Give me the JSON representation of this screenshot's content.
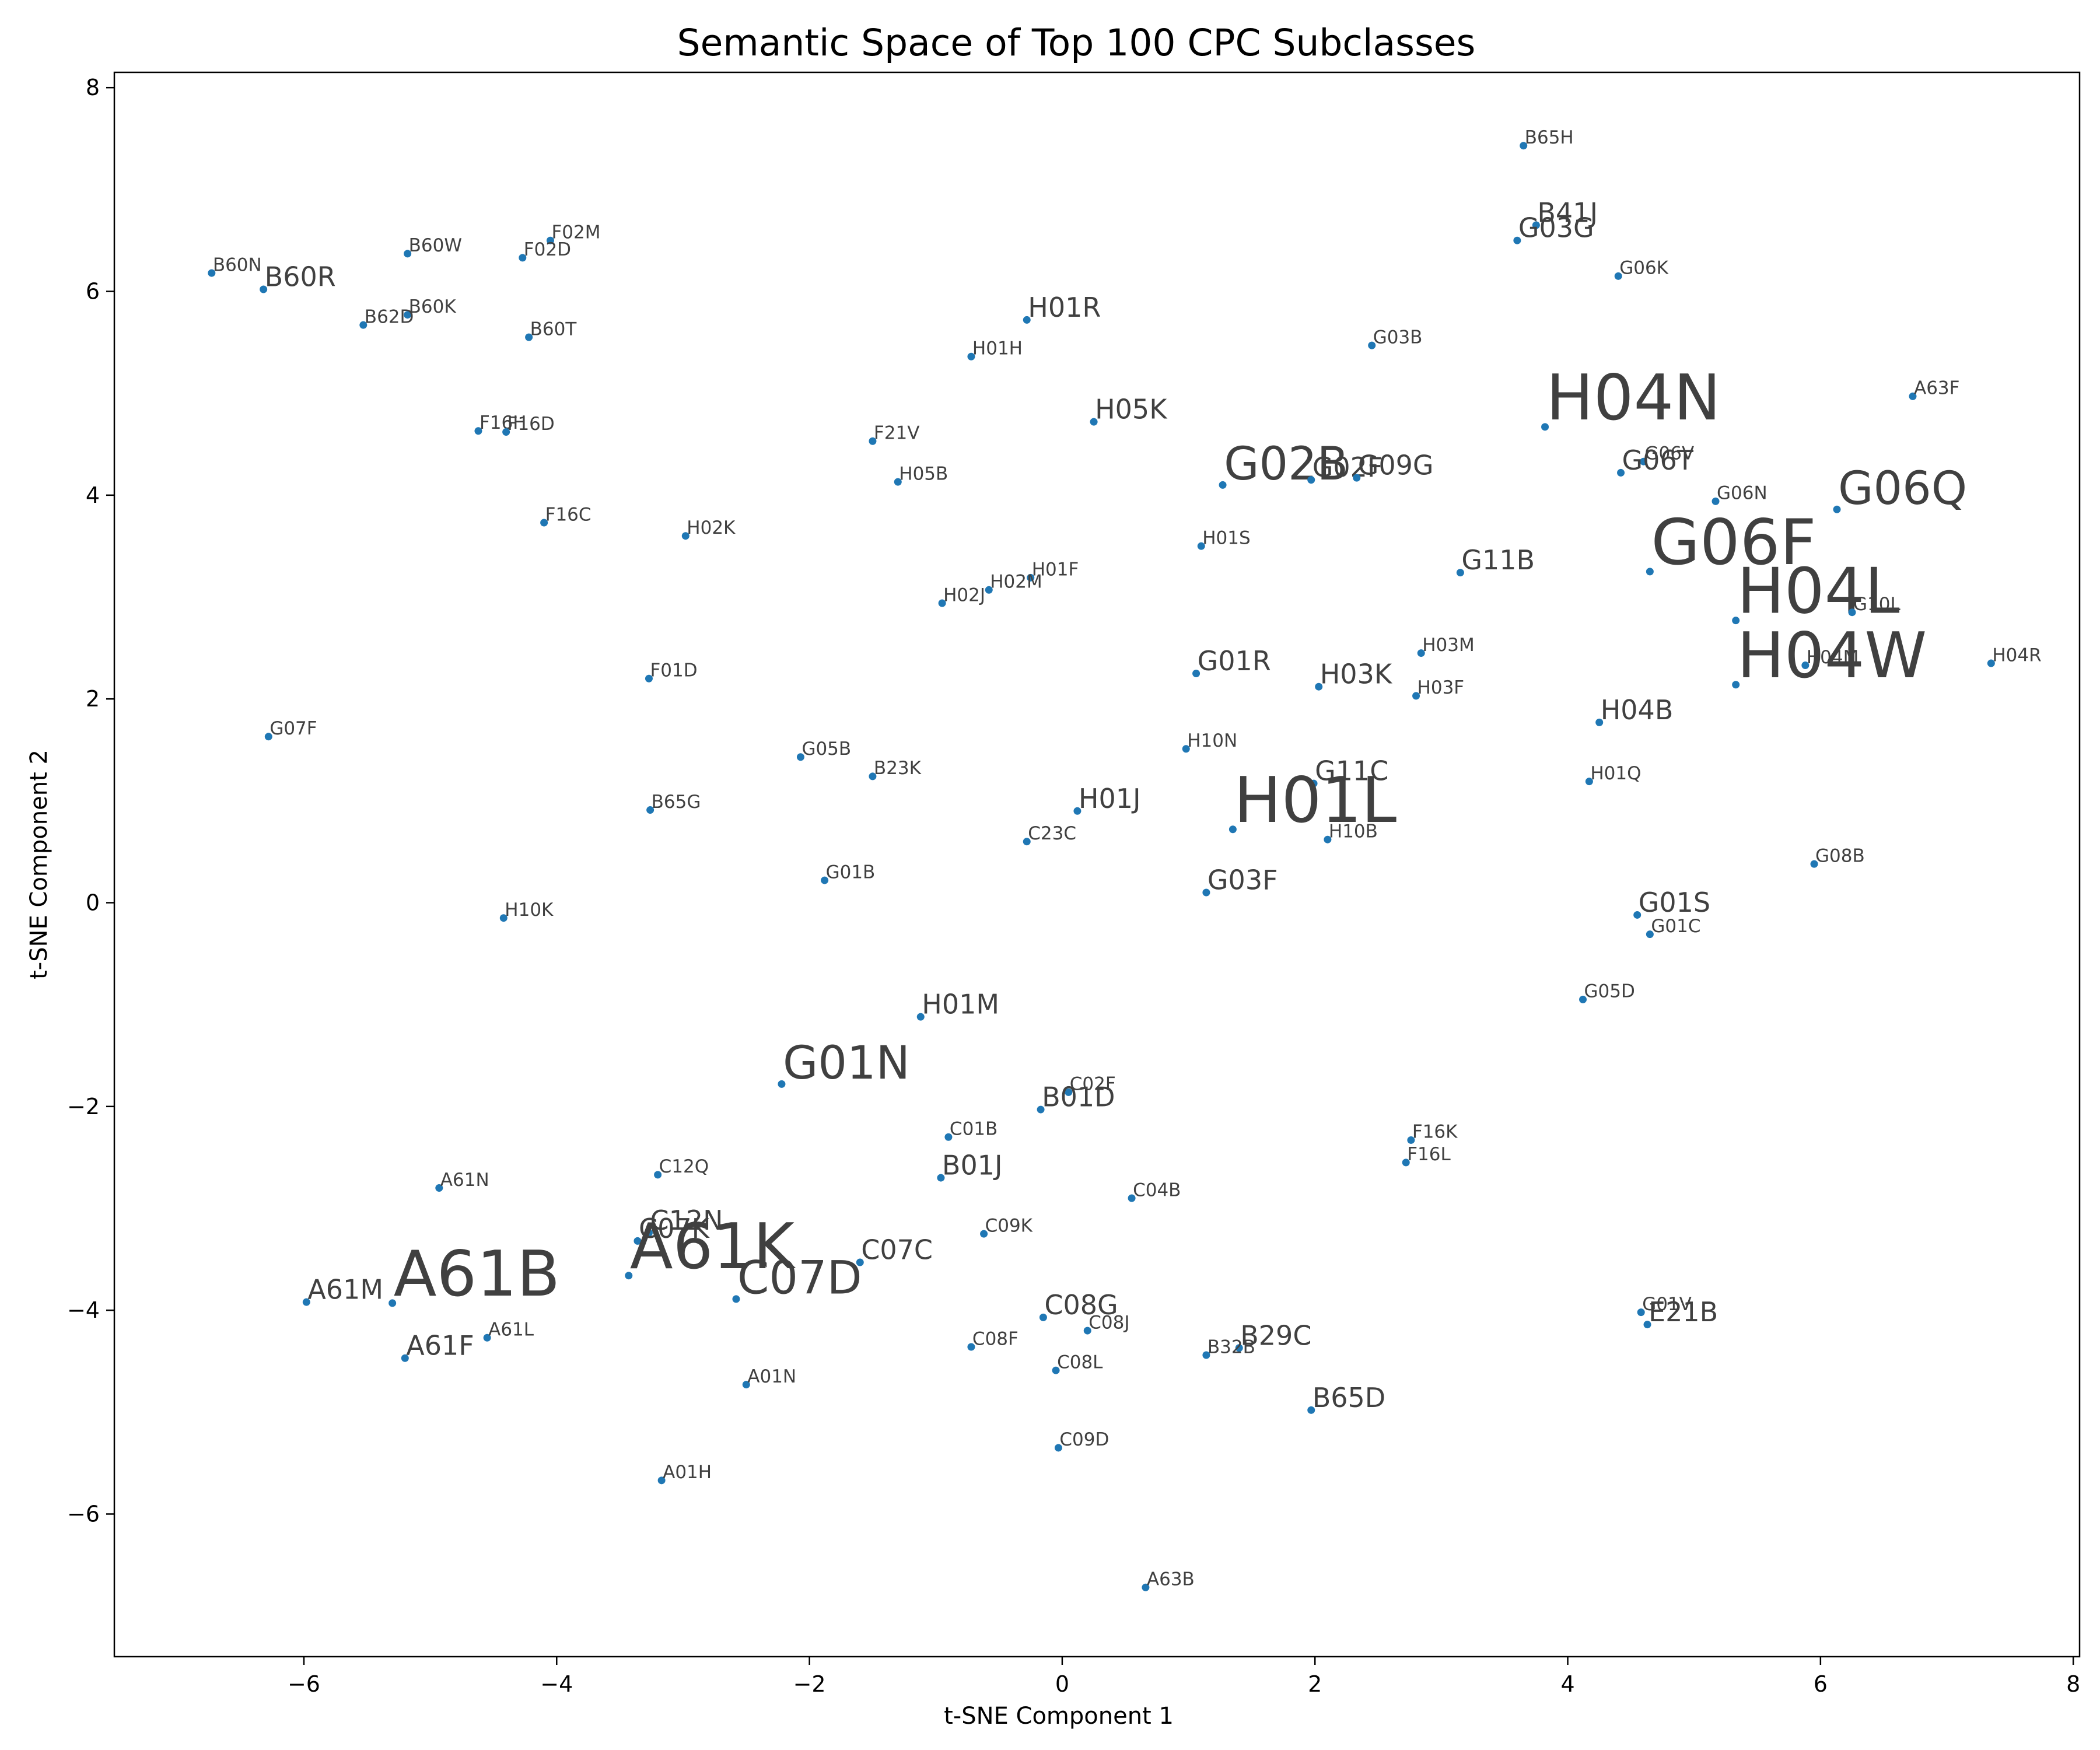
{
  "chart_data": {
    "type": "scatter",
    "title": "Semantic Space of Top 100 CPC Subclasses",
    "xlabel": "t-SNE Component 1",
    "ylabel": "t-SNE Component 2",
    "xlim": [
      -7.5,
      8.05
    ],
    "ylim": [
      -7.4,
      8.15
    ],
    "xticks": [
      -6,
      -4,
      -2,
      0,
      2,
      4,
      6,
      8
    ],
    "yticks": [
      -6,
      -4,
      -2,
      0,
      2,
      4,
      6,
      8
    ],
    "xtick_labels": [
      "−6",
      "−4",
      "−2",
      "0",
      "2",
      "4",
      "6",
      "8"
    ],
    "ytick_labels": [
      "−6",
      "−4",
      "−2",
      "0",
      "2",
      "4",
      "6",
      "8"
    ],
    "grid": false,
    "marker_color": "#1f77b4",
    "label_color": "#404040",
    "label_size_scale": "label font size reflects subclass prominence (s=small, m=medium, l=large, xl=extra large)",
    "points": [
      {
        "label": "B65H",
        "x": 3.65,
        "y": 7.43,
        "size": "s"
      },
      {
        "label": "B41J",
        "x": 3.75,
        "y": 6.65,
        "size": "m"
      },
      {
        "label": "G03G",
        "x": 3.6,
        "y": 6.5,
        "size": "m"
      },
      {
        "label": "G06K",
        "x": 4.4,
        "y": 6.15,
        "size": "s"
      },
      {
        "label": "B60N",
        "x": -6.73,
        "y": 6.18,
        "size": "s"
      },
      {
        "label": "B60R",
        "x": -6.32,
        "y": 6.02,
        "size": "m"
      },
      {
        "label": "B60W",
        "x": -5.18,
        "y": 6.37,
        "size": "s"
      },
      {
        "label": "F02M",
        "x": -4.05,
        "y": 6.5,
        "size": "s"
      },
      {
        "label": "F02D",
        "x": -4.27,
        "y": 6.33,
        "size": "s"
      },
      {
        "label": "B60K",
        "x": -5.18,
        "y": 5.77,
        "size": "s"
      },
      {
        "label": "B62D",
        "x": -5.53,
        "y": 5.67,
        "size": "s"
      },
      {
        "label": "B60T",
        "x": -4.22,
        "y": 5.55,
        "size": "s"
      },
      {
        "label": "H01R",
        "x": -0.28,
        "y": 5.72,
        "size": "m"
      },
      {
        "label": "H01H",
        "x": -0.72,
        "y": 5.36,
        "size": "s"
      },
      {
        "label": "G03B",
        "x": 2.45,
        "y": 5.47,
        "size": "s"
      },
      {
        "label": "A63F",
        "x": 6.73,
        "y": 4.97,
        "size": "s"
      },
      {
        "label": "H04N",
        "x": 3.82,
        "y": 4.67,
        "size": "xl"
      },
      {
        "label": "F16H",
        "x": -4.62,
        "y": 4.63,
        "size": "s"
      },
      {
        "label": "F16D",
        "x": -4.4,
        "y": 4.62,
        "size": "s"
      },
      {
        "label": "F21V",
        "x": -1.5,
        "y": 4.53,
        "size": "s"
      },
      {
        "label": "H05K",
        "x": 0.25,
        "y": 4.72,
        "size": "m"
      },
      {
        "label": "G02B",
        "x": 1.27,
        "y": 4.1,
        "size": "l"
      },
      {
        "label": "G02F",
        "x": 1.97,
        "y": 4.15,
        "size": "m"
      },
      {
        "label": "G09G",
        "x": 2.33,
        "y": 4.17,
        "size": "m"
      },
      {
        "label": "G06V",
        "x": 4.6,
        "y": 4.33,
        "size": "s"
      },
      {
        "label": "G06T",
        "x": 4.42,
        "y": 4.22,
        "size": "m"
      },
      {
        "label": "H05B",
        "x": -1.3,
        "y": 4.13,
        "size": "s"
      },
      {
        "label": "G06N",
        "x": 5.17,
        "y": 3.94,
        "size": "s"
      },
      {
        "label": "G06Q",
        "x": 6.13,
        "y": 3.86,
        "size": "l"
      },
      {
        "label": "F16C",
        "x": -4.1,
        "y": 3.73,
        "size": "s"
      },
      {
        "label": "H02K",
        "x": -2.98,
        "y": 3.6,
        "size": "s"
      },
      {
        "label": "H01S",
        "x": 1.1,
        "y": 3.5,
        "size": "s"
      },
      {
        "label": "G06F",
        "x": 4.65,
        "y": 3.25,
        "size": "xl"
      },
      {
        "label": "G11B",
        "x": 3.15,
        "y": 3.24,
        "size": "m"
      },
      {
        "label": "H01F",
        "x": -0.25,
        "y": 3.19,
        "size": "s"
      },
      {
        "label": "H02M",
        "x": -0.58,
        "y": 3.07,
        "size": "s"
      },
      {
        "label": "H02J",
        "x": -0.95,
        "y": 2.94,
        "size": "s"
      },
      {
        "label": "H04L",
        "x": 5.33,
        "y": 2.77,
        "size": "xl"
      },
      {
        "label": "G10L",
        "x": 6.25,
        "y": 2.85,
        "size": "s"
      },
      {
        "label": "H03M",
        "x": 2.84,
        "y": 2.45,
        "size": "s"
      },
      {
        "label": "H04R",
        "x": 7.35,
        "y": 2.35,
        "size": "s"
      },
      {
        "label": "H04M",
        "x": 5.88,
        "y": 2.33,
        "size": "s"
      },
      {
        "label": "H04W",
        "x": 5.33,
        "y": 2.14,
        "size": "xl"
      },
      {
        "label": "G01R",
        "x": 1.06,
        "y": 2.25,
        "size": "m"
      },
      {
        "label": "H03K",
        "x": 2.03,
        "y": 2.12,
        "size": "m"
      },
      {
        "label": "H03F",
        "x": 2.8,
        "y": 2.03,
        "size": "s"
      },
      {
        "label": "F01D",
        "x": -3.27,
        "y": 2.2,
        "size": "s"
      },
      {
        "label": "H04B",
        "x": 4.25,
        "y": 1.77,
        "size": "m"
      },
      {
        "label": "G07F",
        "x": -6.28,
        "y": 1.63,
        "size": "s"
      },
      {
        "label": "H10N",
        "x": 0.98,
        "y": 1.51,
        "size": "s"
      },
      {
        "label": "G05B",
        "x": -2.07,
        "y": 1.43,
        "size": "s"
      },
      {
        "label": "B23K",
        "x": -1.5,
        "y": 1.24,
        "size": "s"
      },
      {
        "label": "G11C",
        "x": 1.99,
        "y": 1.17,
        "size": "m"
      },
      {
        "label": "H01Q",
        "x": 4.17,
        "y": 1.19,
        "size": "s"
      },
      {
        "label": "B65G",
        "x": -3.26,
        "y": 0.91,
        "size": "s"
      },
      {
        "label": "H01J",
        "x": 0.12,
        "y": 0.9,
        "size": "m"
      },
      {
        "label": "H01L",
        "x": 1.35,
        "y": 0.72,
        "size": "xl"
      },
      {
        "label": "H10B",
        "x": 2.1,
        "y": 0.62,
        "size": "s"
      },
      {
        "label": "C23C",
        "x": -0.28,
        "y": 0.6,
        "size": "s"
      },
      {
        "label": "G08B",
        "x": 5.95,
        "y": 0.38,
        "size": "s"
      },
      {
        "label": "G01B",
        "x": -1.88,
        "y": 0.22,
        "size": "s"
      },
      {
        "label": "G03F",
        "x": 1.14,
        "y": 0.1,
        "size": "m"
      },
      {
        "label": "H10K",
        "x": -4.42,
        "y": -0.15,
        "size": "s"
      },
      {
        "label": "G01S",
        "x": 4.55,
        "y": -0.12,
        "size": "m"
      },
      {
        "label": "G01C",
        "x": 4.65,
        "y": -0.31,
        "size": "s"
      },
      {
        "label": "G05D",
        "x": 4.12,
        "y": -0.95,
        "size": "s"
      },
      {
        "label": "H01M",
        "x": -1.12,
        "y": -1.12,
        "size": "m"
      },
      {
        "label": "G01N",
        "x": -2.22,
        "y": -1.78,
        "size": "l"
      },
      {
        "label": "C02F",
        "x": 0.05,
        "y": -1.86,
        "size": "s"
      },
      {
        "label": "B01D",
        "x": -0.17,
        "y": -2.03,
        "size": "m"
      },
      {
        "label": "C01B",
        "x": -0.9,
        "y": -2.3,
        "size": "s"
      },
      {
        "label": "F16K",
        "x": 2.76,
        "y": -2.33,
        "size": "s"
      },
      {
        "label": "F16L",
        "x": 2.72,
        "y": -2.55,
        "size": "s"
      },
      {
        "label": "C12Q",
        "x": -3.2,
        "y": -2.67,
        "size": "s"
      },
      {
        "label": "B01J",
        "x": -0.96,
        "y": -2.7,
        "size": "m"
      },
      {
        "label": "A61N",
        "x": -4.93,
        "y": -2.8,
        "size": "s"
      },
      {
        "label": "C04B",
        "x": 0.55,
        "y": -2.9,
        "size": "s"
      },
      {
        "label": "C12N",
        "x": -3.27,
        "y": -3.24,
        "size": "m"
      },
      {
        "label": "C07K",
        "x": -3.36,
        "y": -3.32,
        "size": "m"
      },
      {
        "label": "C09K",
        "x": -0.62,
        "y": -3.25,
        "size": "s"
      },
      {
        "label": "A61K",
        "x": -3.43,
        "y": -3.66,
        "size": "xl"
      },
      {
        "label": "C07C",
        "x": -1.6,
        "y": -3.53,
        "size": "m"
      },
      {
        "label": "A61B",
        "x": -5.3,
        "y": -3.93,
        "size": "xl"
      },
      {
        "label": "A61M",
        "x": -5.98,
        "y": -3.92,
        "size": "m"
      },
      {
        "label": "C07D",
        "x": -2.58,
        "y": -3.89,
        "size": "l"
      },
      {
        "label": "C08G",
        "x": -0.15,
        "y": -4.07,
        "size": "m"
      },
      {
        "label": "C08J",
        "x": 0.2,
        "y": -4.2,
        "size": "s"
      },
      {
        "label": "G01V",
        "x": 4.58,
        "y": -4.02,
        "size": "s"
      },
      {
        "label": "E21B",
        "x": 4.63,
        "y": -4.14,
        "size": "m"
      },
      {
        "label": "A61L",
        "x": -4.55,
        "y": -4.27,
        "size": "s"
      },
      {
        "label": "A61F",
        "x": -5.2,
        "y": -4.47,
        "size": "m"
      },
      {
        "label": "C08F",
        "x": -0.72,
        "y": -4.36,
        "size": "s"
      },
      {
        "label": "B29C",
        "x": 1.4,
        "y": -4.37,
        "size": "m"
      },
      {
        "label": "B32B",
        "x": 1.14,
        "y": -4.44,
        "size": "s"
      },
      {
        "label": "C08L",
        "x": -0.05,
        "y": -4.59,
        "size": "s"
      },
      {
        "label": "A01N",
        "x": -2.5,
        "y": -4.73,
        "size": "s"
      },
      {
        "label": "B65D",
        "x": 1.97,
        "y": -4.98,
        "size": "m"
      },
      {
        "label": "C09D",
        "x": -0.03,
        "y": -5.35,
        "size": "s"
      },
      {
        "label": "A01H",
        "x": -3.17,
        "y": -5.67,
        "size": "s"
      },
      {
        "label": "A63B",
        "x": 0.66,
        "y": -6.72,
        "size": "s"
      }
    ]
  }
}
